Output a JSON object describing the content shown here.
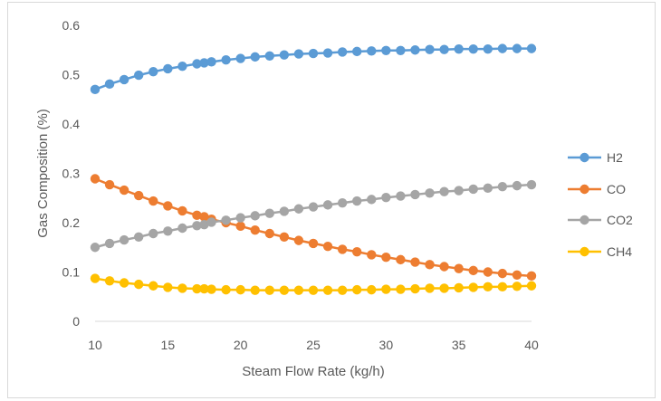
{
  "chart_data": {
    "type": "line",
    "title": "",
    "xlabel": "Steam Flow Rate (kg/h)",
    "ylabel": "Gas Composition (%)",
    "xlim": [
      10,
      40
    ],
    "ylim": [
      0,
      0.6
    ],
    "xticks": [
      10,
      15,
      20,
      25,
      30,
      35,
      40
    ],
    "yticks": [
      0,
      0.1,
      0.2,
      0.3,
      0.4,
      0.5,
      0.6
    ],
    "xtick_labels": [
      "10",
      "15",
      "20",
      "25",
      "30",
      "35",
      "40"
    ],
    "ytick_labels": [
      "0",
      "0.1",
      "0.2",
      "0.3",
      "0.4",
      "0.5",
      "0.6"
    ],
    "grid": "none",
    "legend_position": "right",
    "x": [
      10,
      11,
      12,
      13,
      14,
      15,
      16,
      17,
      17.5,
      18,
      19,
      20,
      21,
      22,
      23,
      24,
      25,
      26,
      27,
      28,
      29,
      30,
      31,
      32,
      33,
      34,
      35,
      36,
      37,
      38,
      39,
      40
    ],
    "series": [
      {
        "name": "H2",
        "color": "#5b9bd5",
        "values": [
          0.47,
          0.481,
          0.49,
          0.499,
          0.506,
          0.512,
          0.517,
          0.522,
          0.524,
          0.526,
          0.53,
          0.533,
          0.536,
          0.538,
          0.54,
          0.542,
          0.543,
          0.544,
          0.546,
          0.547,
          0.548,
          0.549,
          0.549,
          0.55,
          0.551,
          0.551,
          0.552,
          0.552,
          0.552,
          0.553,
          0.553,
          0.553
        ]
      },
      {
        "name": "CO",
        "color": "#ed7d31",
        "values": [
          0.289,
          0.277,
          0.266,
          0.255,
          0.244,
          0.234,
          0.224,
          0.215,
          0.212,
          0.207,
          0.2,
          0.193,
          0.185,
          0.178,
          0.171,
          0.164,
          0.158,
          0.152,
          0.146,
          0.141,
          0.135,
          0.13,
          0.125,
          0.12,
          0.115,
          0.111,
          0.107,
          0.103,
          0.1,
          0.097,
          0.094,
          0.092
        ]
      },
      {
        "name": "CO2",
        "color": "#a5a5a5",
        "values": [
          0.15,
          0.158,
          0.165,
          0.171,
          0.178,
          0.183,
          0.189,
          0.194,
          0.196,
          0.201,
          0.205,
          0.21,
          0.214,
          0.219,
          0.223,
          0.228,
          0.232,
          0.236,
          0.24,
          0.244,
          0.247,
          0.251,
          0.254,
          0.257,
          0.26,
          0.263,
          0.265,
          0.268,
          0.27,
          0.273,
          0.275,
          0.277
        ]
      },
      {
        "name": "CH4",
        "color": "#ffc000",
        "values": [
          0.087,
          0.082,
          0.078,
          0.075,
          0.072,
          0.069,
          0.067,
          0.066,
          0.066,
          0.065,
          0.064,
          0.064,
          0.063,
          0.063,
          0.063,
          0.063,
          0.063,
          0.063,
          0.063,
          0.064,
          0.064,
          0.065,
          0.065,
          0.066,
          0.067,
          0.067,
          0.068,
          0.069,
          0.07,
          0.07,
          0.071,
          0.072
        ]
      }
    ],
    "axis_color": "#d9d9d9",
    "text_color": "#595959"
  }
}
